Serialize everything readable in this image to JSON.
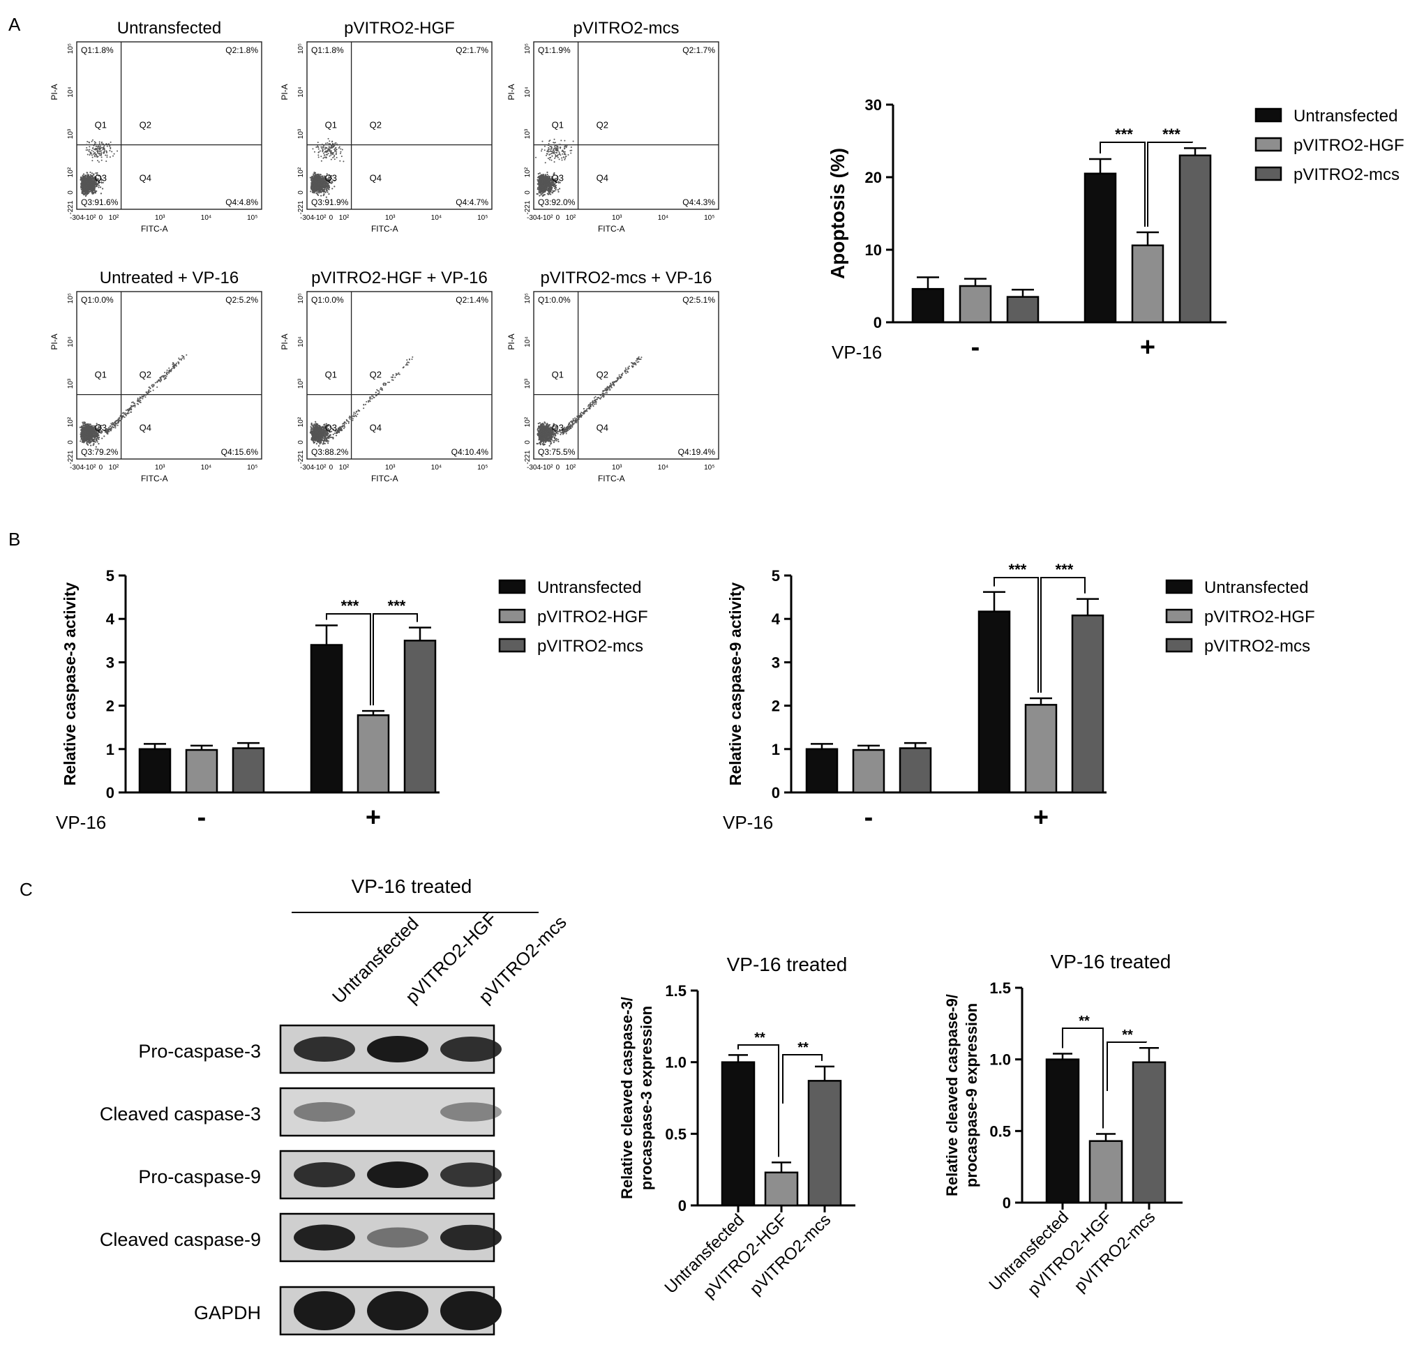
{
  "colors": {
    "untransfected": "#0d0d0d",
    "hgf": "#8e8e8e",
    "mcs": "#5e5e5e",
    "dots": "#555555",
    "band": "#1a1a1a"
  },
  "panel_labels": [
    "A",
    "B",
    "C"
  ],
  "flow": {
    "x_axis_label": "FITC-A",
    "y_axis_label": "PI-A",
    "x_ticks": [
      "-304",
      "-10²",
      "0",
      "10²",
      "10³",
      "10⁴",
      "10⁵"
    ],
    "y_ticks": [
      "10⁵",
      "10⁴",
      "10³",
      "10²",
      "0",
      "-221"
    ],
    "quadrant_names": [
      "Q1",
      "Q2",
      "Q3",
      "Q4"
    ],
    "plots": [
      {
        "title": "Untransfected",
        "q1": "Q1:1.8%",
        "q2": "Q2:1.8%",
        "q3": "Q3:91.6%",
        "q4": "Q4:4.8%",
        "q1_pct": 1.8,
        "q2_pct": 1.8,
        "q3_pct": 91.6,
        "q4_pct": 4.8
      },
      {
        "title": "pVITRO2-HGF",
        "q1": "Q1:1.8%",
        "q2": "Q2:1.7%",
        "q3": "Q3:91.9%",
        "q4": "Q4:4.7%",
        "q1_pct": 1.8,
        "q2_pct": 1.7,
        "q3_pct": 91.9,
        "q4_pct": 4.7
      },
      {
        "title": "pVITRO2-mcs",
        "q1": "Q1:1.9%",
        "q2": "Q2:1.7%",
        "q3": "Q3:92.0%",
        "q4": "Q4:4.3%",
        "q1_pct": 1.9,
        "q2_pct": 1.7,
        "q3_pct": 92.0,
        "q4_pct": 4.3
      },
      {
        "title": "Untreated + VP-16",
        "q1": "Q1:0.0%",
        "q2": "Q2:5.2%",
        "q3": "Q3:79.2%",
        "q4": "Q4:15.6%",
        "q1_pct": 0.0,
        "q2_pct": 5.2,
        "q3_pct": 79.2,
        "q4_pct": 15.6
      },
      {
        "title": "pVITRO2-HGF + VP-16",
        "q1": "Q1:0.0%",
        "q2": "Q2:1.4%",
        "q3": "Q3:88.2%",
        "q4": "Q4:10.4%",
        "q1_pct": 0.0,
        "q2_pct": 1.4,
        "q3_pct": 88.2,
        "q4_pct": 10.4
      },
      {
        "title": "pVITRO2-mcs + VP-16",
        "q1": "Q1:0.0%",
        "q2": "Q2:5.1%",
        "q3": "Q3:75.5%",
        "q4": "Q4:19.4%",
        "q1_pct": 0.0,
        "q2_pct": 5.1,
        "q3_pct": 75.5,
        "q4_pct": 19.4
      }
    ]
  },
  "chart_data": [
    {
      "type": "bar",
      "ylabel": "Apoptosis (%)",
      "ylim": [
        0,
        30
      ],
      "yticks": [
        0,
        10,
        20,
        30
      ],
      "group_axis_label": "VP-16",
      "groups": [
        "-",
        "+"
      ],
      "legend": "right",
      "series": [
        {
          "name": "Untransfected",
          "values": [
            4.6,
            20.5
          ],
          "errors": [
            1.6,
            2.0
          ]
        },
        {
          "name": "pVITRO2-HGF",
          "values": [
            5.0,
            10.6
          ],
          "errors": [
            1.0,
            1.8
          ]
        },
        {
          "name": "pVITRO2-mcs",
          "values": [
            3.5,
            23.0
          ],
          "errors": [
            1.0,
            1.0
          ]
        }
      ],
      "significance": [
        {
          "group": 1,
          "from": 0,
          "to": 1,
          "label": "***"
        },
        {
          "group": 1,
          "from": 1,
          "to": 2,
          "label": "***"
        }
      ]
    },
    {
      "type": "bar",
      "ylabel": "Relative caspase-3 activity",
      "ylim": [
        0,
        5
      ],
      "yticks": [
        0,
        1,
        2,
        3,
        4,
        5
      ],
      "group_axis_label": "VP-16",
      "groups": [
        "-",
        "+"
      ],
      "legend": "right",
      "series": [
        {
          "name": "Untransfected",
          "values": [
            1.0,
            3.4
          ],
          "errors": [
            0.12,
            0.45
          ]
        },
        {
          "name": "pVITRO2-HGF",
          "values": [
            0.98,
            1.78
          ],
          "errors": [
            0.1,
            0.1
          ]
        },
        {
          "name": "pVITRO2-mcs",
          "values": [
            1.02,
            3.5
          ],
          "errors": [
            0.12,
            0.3
          ]
        }
      ],
      "significance": [
        {
          "group": 1,
          "from": 0,
          "to": 1,
          "label": "***"
        },
        {
          "group": 1,
          "from": 1,
          "to": 2,
          "label": "***"
        }
      ]
    },
    {
      "type": "bar",
      "ylabel": "Relative caspase-9 activity",
      "ylim": [
        0,
        5
      ],
      "yticks": [
        0,
        1,
        2,
        3,
        4,
        5
      ],
      "group_axis_label": "VP-16",
      "groups": [
        "-",
        "+"
      ],
      "legend": "right",
      "series": [
        {
          "name": "Untransfected",
          "values": [
            1.0,
            4.17
          ],
          "errors": [
            0.12,
            0.45
          ]
        },
        {
          "name": "pVITRO2-HGF",
          "values": [
            0.98,
            2.02
          ],
          "errors": [
            0.1,
            0.15
          ]
        },
        {
          "name": "pVITRO2-mcs",
          "values": [
            1.02,
            4.08
          ],
          "errors": [
            0.12,
            0.38
          ]
        }
      ],
      "significance": [
        {
          "group": 1,
          "from": 0,
          "to": 1,
          "label": "***"
        },
        {
          "group": 1,
          "from": 1,
          "to": 2,
          "label": "***"
        }
      ]
    },
    {
      "type": "bar",
      "title": "VP-16 treated",
      "ylabel_lines": [
        "Relative cleaved caspase-3/",
        "procaspase-3 expression"
      ],
      "ylim": [
        0,
        1.5
      ],
      "yticks": [
        0,
        0.5,
        1.0,
        1.5
      ],
      "ytick_labels": [
        "0",
        "0.5",
        "1.0",
        "1.5"
      ],
      "categories": [
        "Untransfected",
        "pVITRO2-HGF",
        "pVITRO2-mcs"
      ],
      "values": [
        1.0,
        0.23,
        0.87
      ],
      "errors": [
        0.05,
        0.07,
        0.1
      ],
      "significance": [
        {
          "from": 0,
          "to": 1,
          "label": "**"
        },
        {
          "from": 1,
          "to": 2,
          "label": "**"
        }
      ]
    },
    {
      "type": "bar",
      "title": "VP-16 treated",
      "ylabel_lines": [
        "Relative cleaved caspase-9/",
        "procaspase-9 expression"
      ],
      "ylim": [
        0,
        1.5
      ],
      "yticks": [
        0,
        0.5,
        1.0,
        1.5
      ],
      "ytick_labels": [
        "0",
        "0.5",
        "1.0",
        "1.5"
      ],
      "categories": [
        "Untransfected",
        "pVITRO2-HGF",
        "pVITRO2-mcs"
      ],
      "values": [
        1.0,
        0.43,
        0.98
      ],
      "errors": [
        0.04,
        0.05,
        0.1
      ],
      "significance": [
        {
          "from": 0,
          "to": 1,
          "label": "**"
        },
        {
          "from": 1,
          "to": 2,
          "label": "**"
        }
      ]
    }
  ],
  "western": {
    "header": "VP-16 treated",
    "lanes": [
      "Untransfected",
      "pVITRO2-HGF",
      "pVITRO2-mcs"
    ],
    "rows": [
      {
        "label": "Pro-caspase-3",
        "intensity": [
          0.85,
          1.0,
          0.85
        ]
      },
      {
        "label": "Cleaved caspase-3",
        "intensity": [
          0.3,
          0.0,
          0.25
        ]
      },
      {
        "label": "Pro-caspase-9",
        "intensity": [
          0.85,
          1.0,
          0.8
        ]
      },
      {
        "label": "Cleaved caspase-9",
        "intensity": [
          0.95,
          0.35,
          0.9
        ]
      },
      {
        "label": "GAPDH",
        "intensity": [
          1.0,
          1.0,
          1.0
        ]
      }
    ]
  }
}
